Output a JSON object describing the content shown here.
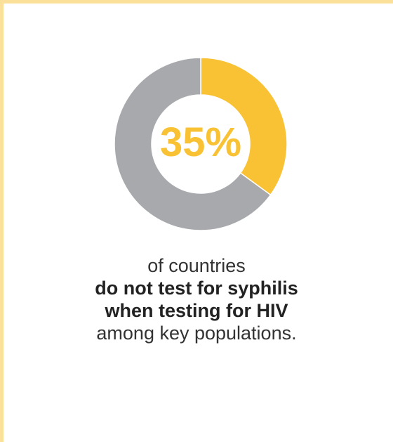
{
  "colors": {
    "border": "#fbe09a",
    "highlight": "#f8c234",
    "remainder": "#a7a9ac",
    "text": "#333333"
  },
  "chart_data": {
    "type": "pie",
    "variant": "donut",
    "slices": [
      {
        "value": 35,
        "color": "#f8c234"
      },
      {
        "value": 65,
        "color": "#a7a9ac"
      }
    ],
    "center_label": "35%"
  },
  "caption": {
    "line1": "of countries",
    "line2": "do not test for syphilis",
    "line3": "when testing for HIV",
    "line4": "among key populations."
  }
}
